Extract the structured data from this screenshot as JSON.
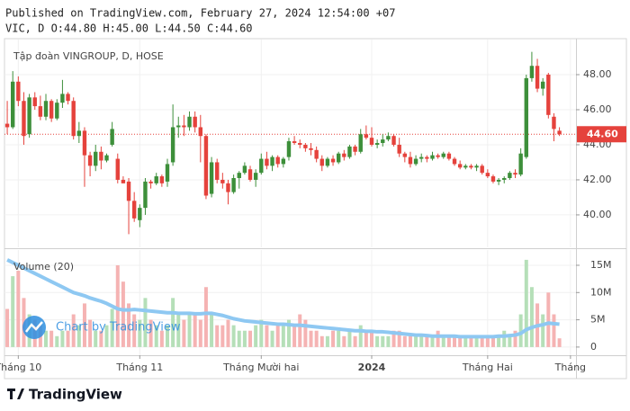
{
  "header": {
    "published": "Published on TradingView.com, February 27, 2024 12:54:00 +07",
    "ohlc_line": "VIC, D O:44.80 H:45.00 L:44.50 C:44.60"
  },
  "footer": {
    "logo": "TradingView"
  },
  "watermark": "Chart by TradingView",
  "chart_data": {
    "type": "candlestick",
    "title": "Tập đoàn VINGROUP, D, HOSE",
    "up_color": "#3d8f3a",
    "down_color": "#e5423c",
    "xlim": [
      -0.5,
      103
    ],
    "xticks": [
      {
        "value": 2,
        "label": "Tháng 10"
      },
      {
        "value": 24,
        "label": "Tháng 11"
      },
      {
        "value": 46,
        "label": "Tháng Mười hai"
      },
      {
        "value": 66,
        "label": "2024"
      },
      {
        "value": 87,
        "label": "Tháng Hai"
      },
      {
        "value": 102,
        "label": "Tháng"
      }
    ],
    "ylim": [
      38.15,
      50
    ],
    "yticks": [
      {
        "value": 40,
        "label": "40.00"
      },
      {
        "value": 42,
        "label": "42.00"
      },
      {
        "value": 44,
        "label": "44.00"
      },
      {
        "value": 46,
        "label": "46.00"
      },
      {
        "value": 48,
        "label": "48.00"
      }
    ],
    "grid": true,
    "last_price": {
      "value": 44.6,
      "label": "44.60"
    },
    "ohlc": [
      [
        45.2,
        46.5,
        44.6,
        45.0
      ],
      [
        45.0,
        48.2,
        44.9,
        47.6
      ],
      [
        47.6,
        47.9,
        46.2,
        46.5
      ],
      [
        46.5,
        47.0,
        44.0,
        44.5
      ],
      [
        44.6,
        46.9,
        44.4,
        46.7
      ],
      [
        46.7,
        47.0,
        46.0,
        46.2
      ],
      [
        46.2,
        46.8,
        45.4,
        45.6
      ],
      [
        45.6,
        46.9,
        45.4,
        46.5
      ],
      [
        46.5,
        46.6,
        45.3,
        45.5
      ],
      [
        45.5,
        46.6,
        45.4,
        46.4
      ],
      [
        46.4,
        47.7,
        46.1,
        46.9
      ],
      [
        46.9,
        47.0,
        46.3,
        46.5
      ],
      [
        46.5,
        46.7,
        44.3,
        44.5
      ],
      [
        44.5,
        45.3,
        44.1,
        44.8
      ],
      [
        44.8,
        45.0,
        41.6,
        43.4
      ],
      [
        43.4,
        43.6,
        42.2,
        42.8
      ],
      [
        42.8,
        44.0,
        42.5,
        43.6
      ],
      [
        43.6,
        43.9,
        42.6,
        43.1
      ],
      [
        43.1,
        43.5,
        43.0,
        43.4
      ],
      [
        44.0,
        45.3,
        43.9,
        44.9
      ],
      [
        43.2,
        43.5,
        41.8,
        42.0
      ],
      [
        42.0,
        42.2,
        41.8,
        41.8
      ],
      [
        41.9,
        42.1,
        38.9,
        40.8
      ],
      [
        40.8,
        41.3,
        39.6,
        39.8
      ],
      [
        39.7,
        40.6,
        39.3,
        40.4
      ],
      [
        40.4,
        42.1,
        40.0,
        41.9
      ],
      [
        41.9,
        42.0,
        41.5,
        41.8
      ],
      [
        41.8,
        42.4,
        41.7,
        42.2
      ],
      [
        42.2,
        42.3,
        41.6,
        41.8
      ],
      [
        41.9,
        43.2,
        41.6,
        42.9
      ],
      [
        43.0,
        46.3,
        42.8,
        45.0
      ],
      [
        45.0,
        45.6,
        44.4,
        45.1
      ],
      [
        45.1,
        45.7,
        44.5,
        45.0
      ],
      [
        45.0,
        45.9,
        44.8,
        45.6
      ],
      [
        45.6,
        45.9,
        44.7,
        45.0
      ],
      [
        45.0,
        45.7,
        43.0,
        44.5
      ],
      [
        44.5,
        44.6,
        40.9,
        41.1
      ],
      [
        41.2,
        43.3,
        41.0,
        43.0
      ],
      [
        43.0,
        43.2,
        41.8,
        42.0
      ],
      [
        42.0,
        42.4,
        41.5,
        41.8
      ],
      [
        41.8,
        42.0,
        40.6,
        41.3
      ],
      [
        41.3,
        42.3,
        41.2,
        42.1
      ],
      [
        42.1,
        42.5,
        41.5,
        42.4
      ],
      [
        42.4,
        43.0,
        42.3,
        42.8
      ],
      [
        42.6,
        42.8,
        41.9,
        42.0
      ],
      [
        42.0,
        42.6,
        41.6,
        42.4
      ],
      [
        42.4,
        43.5,
        42.3,
        43.2
      ],
      [
        43.2,
        43.6,
        42.6,
        42.8
      ],
      [
        42.8,
        43.4,
        42.5,
        43.3
      ],
      [
        43.3,
        43.4,
        42.7,
        42.9
      ],
      [
        42.9,
        43.3,
        42.7,
        43.2
      ],
      [
        43.3,
        44.4,
        43.1,
        44.2
      ],
      [
        44.2,
        44.5,
        44.0,
        44.1
      ],
      [
        44.1,
        44.3,
        43.8,
        44.0
      ],
      [
        44.0,
        44.1,
        43.6,
        43.8
      ],
      [
        43.8,
        44.1,
        43.4,
        43.7
      ],
      [
        43.7,
        43.9,
        43.0,
        43.2
      ],
      [
        43.2,
        43.4,
        42.5,
        42.8
      ],
      [
        42.8,
        43.3,
        42.7,
        43.2
      ],
      [
        43.2,
        43.4,
        42.8,
        43.0
      ],
      [
        43.0,
        43.6,
        42.9,
        43.5
      ],
      [
        43.5,
        43.7,
        43.1,
        43.3
      ],
      [
        43.3,
        44.0,
        43.2,
        43.9
      ],
      [
        43.9,
        44.0,
        43.4,
        43.6
      ],
      [
        43.6,
        44.9,
        43.5,
        44.6
      ],
      [
        44.6,
        45.1,
        44.3,
        44.4
      ],
      [
        44.4,
        45.0,
        43.9,
        44.0
      ],
      [
        44.0,
        44.3,
        43.8,
        44.1
      ],
      [
        44.1,
        44.6,
        43.9,
        44.3
      ],
      [
        44.3,
        44.7,
        44.2,
        44.5
      ],
      [
        44.5,
        44.6,
        43.9,
        44.0
      ],
      [
        44.0,
        44.4,
        43.3,
        43.5
      ],
      [
        43.5,
        43.6,
        43.0,
        43.3
      ],
      [
        43.3,
        43.6,
        42.7,
        42.9
      ],
      [
        42.9,
        43.4,
        42.8,
        43.2
      ],
      [
        43.2,
        43.5,
        43.0,
        43.3
      ],
      [
        43.3,
        43.4,
        43.0,
        43.2
      ],
      [
        43.2,
        43.6,
        43.1,
        43.4
      ],
      [
        43.4,
        43.5,
        43.2,
        43.3
      ],
      [
        43.3,
        43.6,
        43.2,
        43.5
      ],
      [
        43.5,
        43.6,
        43.1,
        43.2
      ],
      [
        43.2,
        43.3,
        42.8,
        42.9
      ],
      [
        42.9,
        43.1,
        42.6,
        42.7
      ],
      [
        42.7,
        42.9,
        42.6,
        42.8
      ],
      [
        42.8,
        42.9,
        42.6,
        42.7
      ],
      [
        42.7,
        42.9,
        42.5,
        42.8
      ],
      [
        42.8,
        42.9,
        42.3,
        42.4
      ],
      [
        42.4,
        42.6,
        42.1,
        42.2
      ],
      [
        42.2,
        42.3,
        41.8,
        41.9
      ],
      [
        41.9,
        42.1,
        41.7,
        42.0
      ],
      [
        42.0,
        42.2,
        41.8,
        42.1
      ],
      [
        42.1,
        42.5,
        42.0,
        42.4
      ],
      [
        42.4,
        42.6,
        42.1,
        42.3
      ],
      [
        42.3,
        43.8,
        42.2,
        43.5
      ],
      [
        43.3,
        48.0,
        43.2,
        47.8
      ],
      [
        47.8,
        49.3,
        47.6,
        48.5
      ],
      [
        48.5,
        48.9,
        47.0,
        47.2
      ],
      [
        47.2,
        47.8,
        46.8,
        47.6
      ],
      [
        48.0,
        48.1,
        45.5,
        45.7
      ],
      [
        45.6,
        45.8,
        44.2,
        44.9
      ],
      [
        44.8,
        45.0,
        44.5,
        44.6
      ]
    ],
    "volume": {
      "name": "Volume (20)",
      "up_color": "#b5dfb8",
      "down_color": "#f5b3b3",
      "ma_color": "#8ec8f2",
      "ylim": [
        -1.5,
        17.8
      ],
      "yticks": [
        0,
        {
          "value": 5,
          "label": "5M"
        },
        {
          "value": 10,
          "label": "10M"
        },
        {
          "value": 15,
          "label": "15M"
        }
      ],
      "values": [
        7,
        13,
        14,
        9,
        6,
        5,
        4,
        3,
        3,
        2,
        3,
        3,
        6,
        4,
        8,
        5,
        3,
        3,
        4,
        7,
        15,
        12,
        8,
        6,
        5,
        9,
        5,
        4,
        3,
        4,
        9,
        6,
        5,
        6,
        6,
        5,
        11,
        6,
        4,
        4,
        5,
        4,
        3,
        3,
        3,
        4,
        5,
        4,
        3,
        4,
        4,
        5,
        4,
        6,
        5,
        3,
        3,
        2,
        2,
        3,
        3,
        2,
        3,
        2,
        4,
        3,
        3,
        2,
        2,
        2,
        3,
        3,
        2,
        2,
        2,
        2,
        2,
        2,
        3,
        2,
        2,
        2,
        2,
        2,
        2,
        2,
        2,
        2,
        2,
        2,
        3,
        2,
        3,
        6,
        16,
        11,
        8,
        6,
        10,
        6,
        1.6
      ],
      "ma": [
        16,
        15.5,
        15,
        14.5,
        14,
        13.5,
        13,
        12.5,
        12,
        11.5,
        11,
        10.5,
        10,
        9.7,
        9.4,
        9,
        8.7,
        8.4,
        8,
        7.5,
        7,
        6.8,
        6.8,
        6.9,
        6.8,
        6.7,
        6.6,
        6.5,
        6.4,
        6.3,
        6.3,
        6.2,
        6.2,
        6.2,
        6.1,
        6.1,
        6.2,
        6.2,
        6.0,
        5.8,
        5.5,
        5.2,
        5.0,
        4.8,
        4.7,
        4.6,
        4.5,
        4.4,
        4.3,
        4.2,
        4.2,
        4.1,
        4.0,
        4.0,
        3.9,
        3.8,
        3.7,
        3.6,
        3.5,
        3.4,
        3.3,
        3.2,
        3.1,
        3.0,
        3.0,
        2.9,
        2.9,
        2.8,
        2.8,
        2.7,
        2.6,
        2.5,
        2.4,
        2.3,
        2.2,
        2.2,
        2.1,
        2.0,
        2.0,
        2.0,
        2.0,
        2.0,
        1.9,
        1.9,
        1.9,
        1.9,
        1.9,
        1.9,
        1.9,
        2.0,
        2.0,
        2.1,
        2.2,
        2.5,
        3.2,
        3.6,
        3.9,
        4.1,
        4.4,
        4.3,
        4.2
      ]
    }
  }
}
